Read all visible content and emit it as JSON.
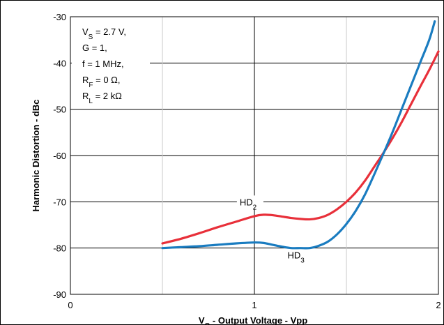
{
  "chart_data": {
    "type": "line",
    "title": "",
    "xlabel": {
      "main": "V",
      "sub": "O",
      "rest": " - Output Voltage - Vpp"
    },
    "ylabel": "Harmonic Distortion - dBc",
    "xlim": [
      0,
      2
    ],
    "ylim": [
      -90,
      -30
    ],
    "x_ticks": [
      0,
      1,
      2
    ],
    "y_ticks": [
      -30,
      -40,
      -50,
      -60,
      -70,
      -80,
      -90
    ],
    "grid": true,
    "conditions": [
      {
        "main": "V",
        "sub": "S",
        "rest": " = 2.7 V,"
      },
      {
        "main": "G = 1,",
        "sub": "",
        "rest": ""
      },
      {
        "main": "f = 1 MHz,",
        "sub": "",
        "rest": ""
      },
      {
        "main": "R",
        "sub": "F",
        "rest": " = 0 Ω,"
      },
      {
        "main": "R",
        "sub": "L",
        "rest": " = 2 kΩ"
      }
    ],
    "series": [
      {
        "name": {
          "main": "HD",
          "sub": "2"
        },
        "color": "#e8303a",
        "x": [
          0.5,
          0.6,
          0.7,
          0.8,
          0.9,
          1.0,
          1.05,
          1.1,
          1.15,
          1.2,
          1.25,
          1.3,
          1.35,
          1.4,
          1.45,
          1.5,
          1.55,
          1.6,
          1.65,
          1.7,
          1.75,
          1.8,
          1.85,
          1.9,
          1.95,
          2.0
        ],
        "y": [
          -79,
          -78,
          -76.8,
          -75.5,
          -74.3,
          -73.1,
          -72.8,
          -72.9,
          -73.2,
          -73.5,
          -73.7,
          -73.8,
          -73.5,
          -72.8,
          -71.6,
          -70,
          -68,
          -65.5,
          -62.5,
          -59.5,
          -56.3,
          -52.8,
          -49,
          -45.2,
          -41.5,
          -37.5
        ]
      },
      {
        "name": {
          "main": "HD",
          "sub": "3"
        },
        "color": "#1a7cc0",
        "x": [
          0.5,
          0.6,
          0.7,
          0.8,
          0.9,
          1.0,
          1.05,
          1.1,
          1.15,
          1.2,
          1.25,
          1.3,
          1.35,
          1.4,
          1.45,
          1.5,
          1.55,
          1.6,
          1.65,
          1.7,
          1.75,
          1.8,
          1.85,
          1.9,
          1.95,
          1.98
        ],
        "y": [
          -80,
          -79.8,
          -79.6,
          -79.3,
          -79,
          -78.8,
          -78.9,
          -79.3,
          -79.7,
          -80,
          -80,
          -80,
          -79.5,
          -78.6,
          -77,
          -74.8,
          -72,
          -68.5,
          -64.2,
          -59.7,
          -55,
          -50,
          -45,
          -40,
          -35,
          -31
        ]
      }
    ]
  }
}
